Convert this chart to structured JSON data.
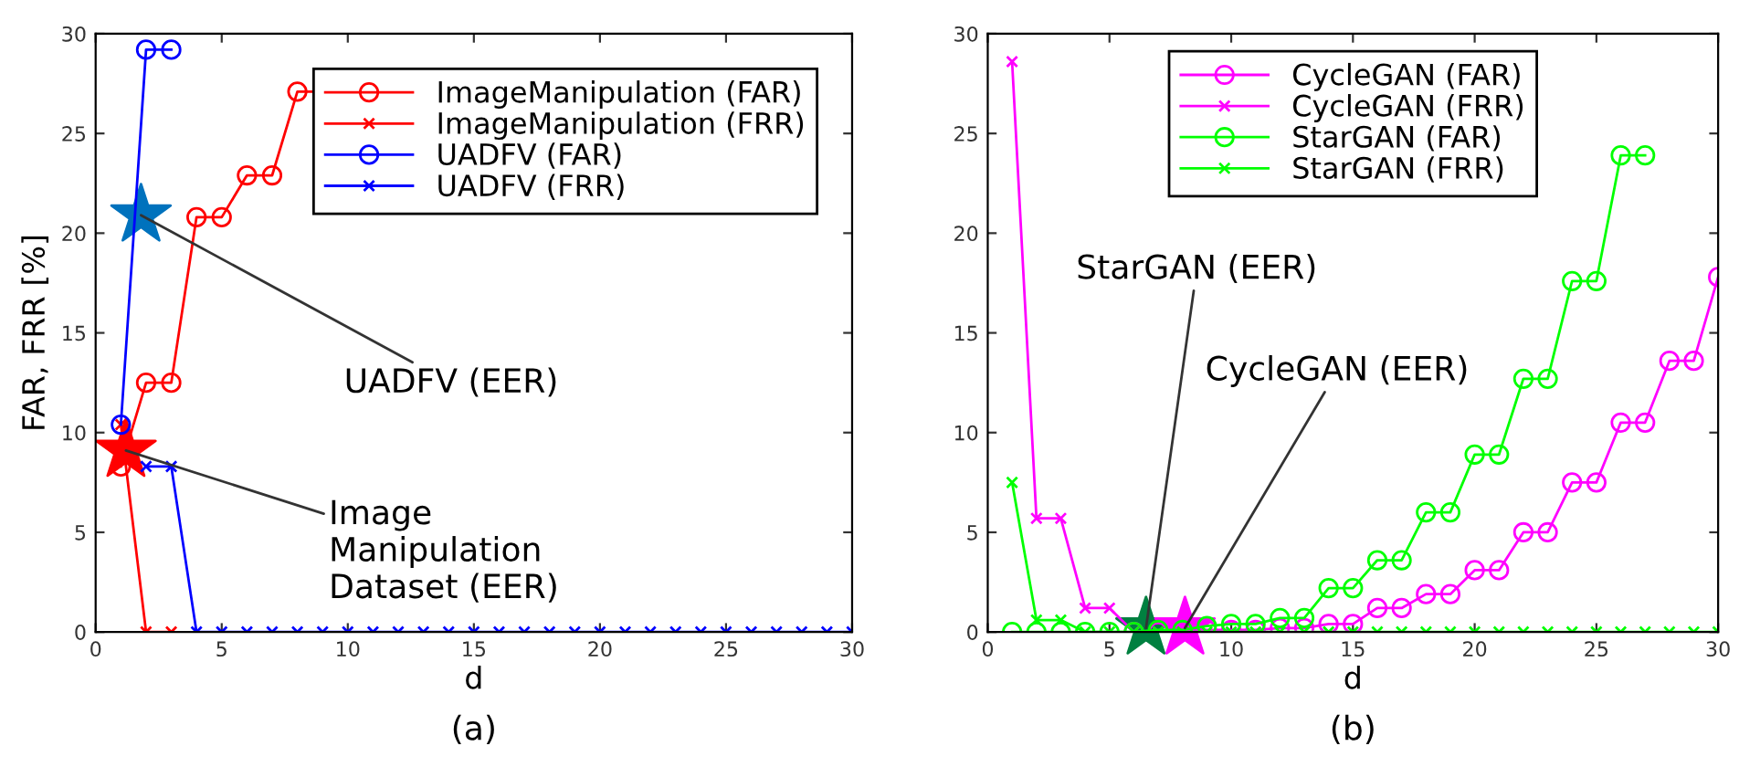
{
  "chart_data": [
    {
      "type": "line",
      "title": "(a)",
      "xlabel": "d",
      "ylabel": "FAR, FRR [%]",
      "x": [
        1,
        2,
        3,
        4,
        5,
        6,
        7,
        8,
        9,
        10,
        11,
        12,
        13,
        14,
        15,
        16,
        17,
        18,
        19,
        20,
        21,
        22,
        23,
        24,
        25,
        26,
        27,
        28,
        29,
        30
      ],
      "xlim": [
        0,
        30
      ],
      "ylim": [
        0,
        30
      ],
      "xticks": [
        0,
        5,
        10,
        15,
        20,
        25,
        30
      ],
      "yticks": [
        0,
        5,
        10,
        15,
        20,
        25,
        30
      ],
      "legend": "top right",
      "line_style": "solid",
      "series": [
        {
          "name": "ImageManipulation (FAR)",
          "color": "#ff0000",
          "marker": "circle",
          "values": [
            8.3,
            12.5,
            12.5,
            20.8,
            20.8,
            22.9,
            22.9,
            27.1,
            27.1,
            null,
            null,
            null,
            null,
            null,
            null,
            null,
            null,
            null,
            null,
            null,
            null,
            null,
            null,
            null,
            null,
            null,
            null,
            null,
            null,
            null
          ]
        },
        {
          "name": "ImageManipulation (FRR)",
          "color": "#ff0000",
          "marker": "cross",
          "values": [
            10.4,
            0,
            0,
            null,
            null,
            null,
            null,
            null,
            null,
            null,
            null,
            null,
            null,
            null,
            null,
            null,
            null,
            null,
            null,
            null,
            null,
            null,
            null,
            null,
            null,
            null,
            null,
            null,
            null,
            null
          ]
        },
        {
          "name": "UADFV (FAR)",
          "color": "#0000ff",
          "marker": "circle",
          "values": [
            10.4,
            29.2,
            29.2,
            null,
            null,
            null,
            null,
            null,
            null,
            null,
            null,
            null,
            null,
            null,
            null,
            null,
            null,
            null,
            null,
            null,
            null,
            null,
            null,
            null,
            null,
            null,
            null,
            null,
            null,
            null
          ]
        },
        {
          "name": "UADFV (FRR)",
          "color": "#0000ff",
          "marker": "cross",
          "values": [
            null,
            8.3,
            8.3,
            0,
            0,
            0,
            0,
            0,
            0,
            0,
            0,
            0,
            0,
            0,
            0,
            0,
            0,
            0,
            0,
            0,
            0,
            0,
            0,
            0,
            0,
            0,
            0,
            0,
            0,
            0
          ]
        },
        {
          "type": "scatter",
          "marker": "star",
          "color": "#0072bd",
          "x": [
            1.8
          ],
          "values": [
            20.9
          ]
        },
        {
          "type": "scatter",
          "marker": "star",
          "color": "#ff0000",
          "x": [
            1.2
          ],
          "values": [
            9.1
          ]
        }
      ],
      "annotations": [
        {
          "text": "UADFV (EER)",
          "x": 1.8,
          "y": 20.9
        },
        {
          "text": "Image\nManipulation\nDataset (EER)",
          "x": 1.2,
          "y": 9.1
        }
      ]
    },
    {
      "type": "line",
      "title": "(b)",
      "xlabel": "d",
      "x": [
        1,
        2,
        3,
        4,
        5,
        6,
        7,
        8,
        9,
        10,
        11,
        12,
        13,
        14,
        15,
        16,
        17,
        18,
        19,
        20,
        21,
        22,
        23,
        24,
        25,
        26,
        27,
        28,
        29,
        30
      ],
      "xlim": [
        0,
        30
      ],
      "ylim": [
        0,
        30
      ],
      "xticks": [
        0,
        5,
        10,
        15,
        20,
        25,
        30
      ],
      "yticks": [
        0,
        5,
        10,
        15,
        20,
        25,
        30
      ],
      "legend": "top",
      "line_style": "solid",
      "series": [
        {
          "name": "CycleGAN (FAR)",
          "color": "#ff00ff",
          "marker": "circle",
          "values": [
            null,
            null,
            null,
            null,
            null,
            0,
            0,
            0.1,
            0.1,
            0.1,
            0.1,
            0.2,
            0.2,
            0.4,
            0.4,
            1.2,
            1.2,
            1.9,
            1.9,
            3.1,
            3.1,
            5.0,
            5.0,
            7.5,
            7.5,
            10.5,
            10.5,
            13.6,
            13.6,
            17.8
          ]
        },
        {
          "name": "CycleGAN (FRR)",
          "color": "#ff00ff",
          "marker": "cross",
          "values": [
            28.6,
            5.7,
            5.7,
            1.2,
            1.2,
            0,
            0,
            null,
            null,
            null,
            null,
            null,
            null,
            null,
            null,
            null,
            null,
            null,
            null,
            null,
            null,
            null,
            null,
            null,
            null,
            null,
            null,
            null,
            null,
            null
          ]
        },
        {
          "name": "StarGAN (FAR)",
          "color": "#00ff00",
          "marker": "circle",
          "values": [
            0,
            0,
            0,
            0,
            0,
            0,
            0.1,
            0.1,
            0.3,
            0.4,
            0.4,
            0.7,
            0.7,
            2.2,
            2.2,
            3.6,
            3.6,
            6.0,
            6.0,
            8.9,
            8.9,
            12.7,
            12.7,
            17.6,
            17.6,
            23.9,
            23.9,
            null,
            null,
            null
          ]
        },
        {
          "name": "StarGAN (FRR)",
          "color": "#00ff00",
          "marker": "cross",
          "values": [
            7.5,
            0.6,
            0.6,
            0,
            0,
            0,
            0,
            0,
            0,
            0,
            0,
            0,
            0,
            0,
            0,
            0,
            0,
            0,
            0,
            0,
            0,
            0,
            0,
            0,
            0,
            0,
            0,
            0,
            0,
            0
          ]
        },
        {
          "type": "scatter",
          "marker": "star",
          "color": "#008040",
          "x": [
            6.5
          ],
          "values": [
            0.2
          ]
        },
        {
          "type": "scatter",
          "marker": "star",
          "color": "#ff00ff",
          "x": [
            8.1
          ],
          "values": [
            0.2
          ]
        }
      ],
      "annotations": [
        {
          "text": "StarGAN (EER)",
          "x": 6.5,
          "y": 0.2
        },
        {
          "text": "CycleGAN (EER)",
          "x": 8.1,
          "y": 0.2
        }
      ]
    }
  ]
}
